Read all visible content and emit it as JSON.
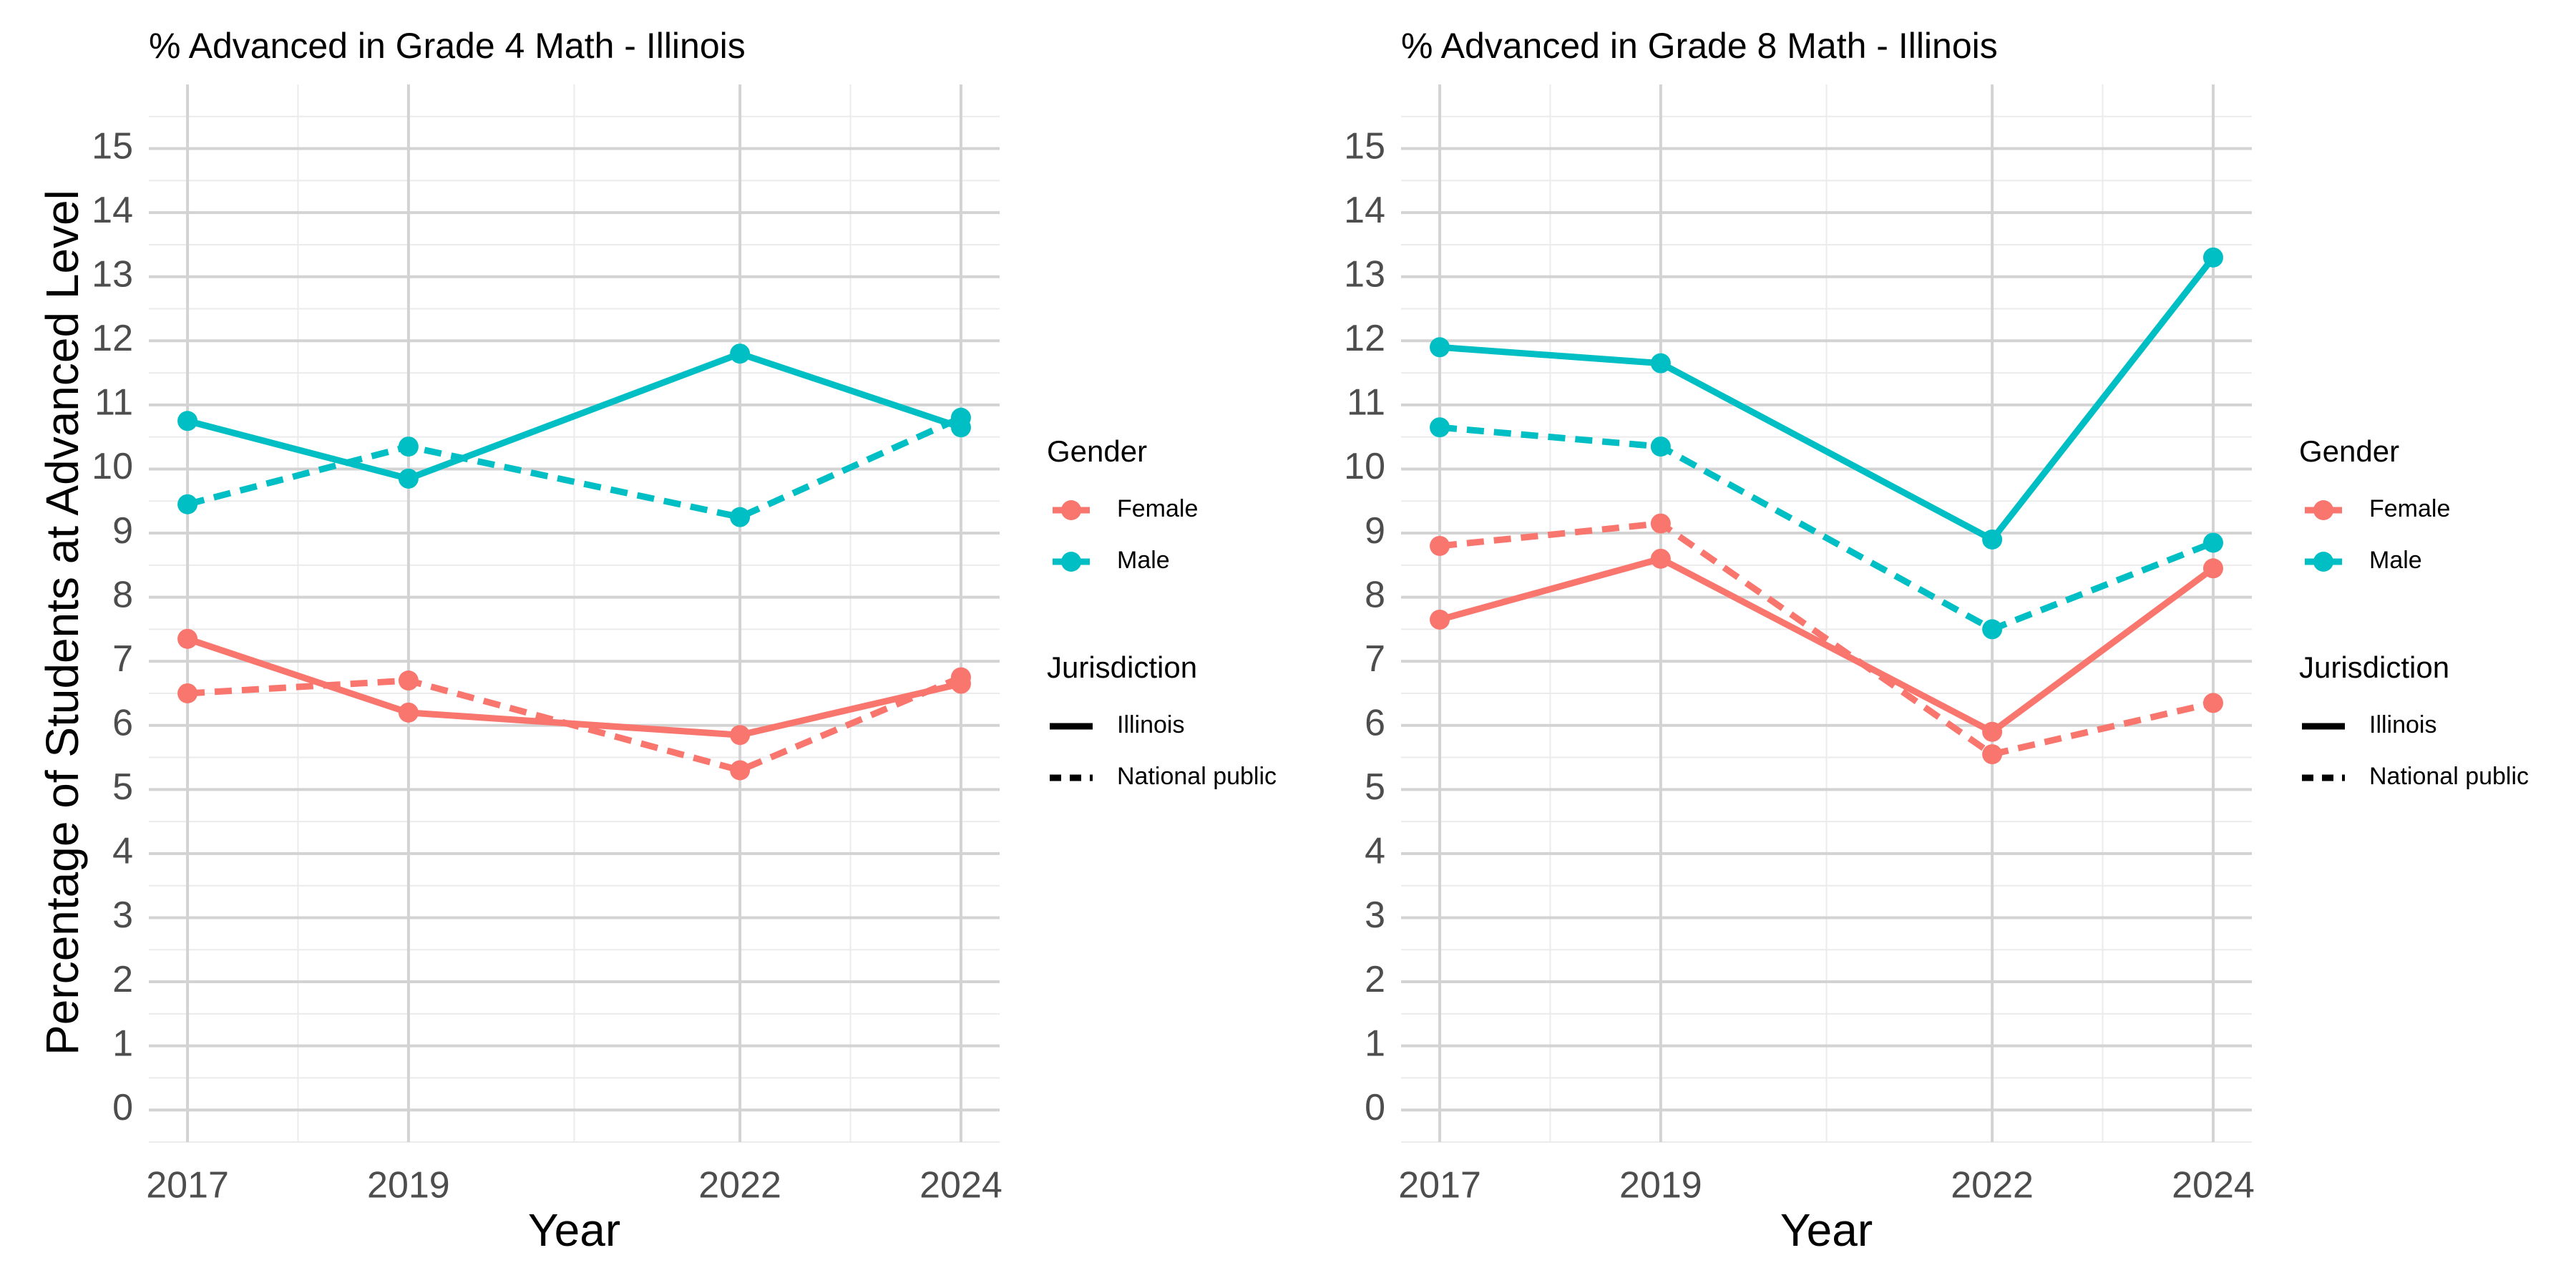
{
  "figure": {
    "ylabel": "Percentage of Students at Advanced Level"
  },
  "legend": {
    "gender_title": "Gender",
    "gender_items": [
      {
        "label": "Female",
        "color": "#F8766D"
      },
      {
        "label": "Male",
        "color": "#00BFC4"
      }
    ],
    "jurisdiction_title": "Jurisdiction",
    "jurisdiction_items": [
      {
        "label": "Illinois",
        "linetype": "solid"
      },
      {
        "label": "National public",
        "linetype": "dashed"
      }
    ]
  },
  "chart_data": [
    {
      "type": "line",
      "title": "% Advanced in Grade 4 Math - Illinois",
      "xlabel": "Year",
      "ylabel": "Percentage of Students at Advanced Level",
      "x": [
        2017,
        2019,
        2022,
        2024
      ],
      "x_ticks": [
        "2017",
        "2019",
        "2022",
        "2024"
      ],
      "y_ticks": [
        "0",
        "1",
        "2",
        "3",
        "4",
        "5",
        "6",
        "7",
        "8",
        "9",
        "10",
        "11",
        "12",
        "13",
        "14",
        "15"
      ],
      "xlim": [
        2016.65,
        2024.35
      ],
      "ylim": [
        -0.5,
        16.0
      ],
      "grid": true,
      "series": [
        {
          "gender": "Female",
          "jurisdiction": "Illinois",
          "color": "#F8766D",
          "linetype": "solid",
          "values": [
            7.35,
            6.2,
            5.85,
            6.65
          ]
        },
        {
          "gender": "Female",
          "jurisdiction": "National public",
          "color": "#F8766D",
          "linetype": "dashed",
          "values": [
            6.5,
            6.7,
            5.3,
            6.75
          ]
        },
        {
          "gender": "Male",
          "jurisdiction": "Illinois",
          "color": "#00BFC4",
          "linetype": "solid",
          "values": [
            10.75,
            9.85,
            11.8,
            10.65
          ]
        },
        {
          "gender": "Male",
          "jurisdiction": "National public",
          "color": "#00BFC4",
          "linetype": "dashed",
          "values": [
            9.45,
            10.35,
            9.25,
            10.8
          ]
        }
      ]
    },
    {
      "type": "line",
      "title": "% Advanced in Grade 8 Math - Illinois",
      "xlabel": "Year",
      "ylabel": "",
      "x": [
        2017,
        2019,
        2022,
        2024
      ],
      "x_ticks": [
        "2017",
        "2019",
        "2022",
        "2024"
      ],
      "y_ticks": [
        "0",
        "1",
        "2",
        "3",
        "4",
        "5",
        "6",
        "7",
        "8",
        "9",
        "10",
        "11",
        "12",
        "13",
        "14",
        "15"
      ],
      "xlim": [
        2016.65,
        2024.35
      ],
      "ylim": [
        -0.5,
        16.0
      ],
      "grid": true,
      "series": [
        {
          "gender": "Female",
          "jurisdiction": "Illinois",
          "color": "#F8766D",
          "linetype": "solid",
          "values": [
            7.65,
            8.6,
            5.9,
            8.45
          ]
        },
        {
          "gender": "Female",
          "jurisdiction": "National public",
          "color": "#F8766D",
          "linetype": "dashed",
          "values": [
            8.8,
            9.15,
            5.55,
            6.35
          ]
        },
        {
          "gender": "Male",
          "jurisdiction": "Illinois",
          "color": "#00BFC4",
          "linetype": "solid",
          "values": [
            11.9,
            11.65,
            8.9,
            13.3
          ]
        },
        {
          "gender": "Male",
          "jurisdiction": "National public",
          "color": "#00BFC4",
          "linetype": "dashed",
          "values": [
            10.65,
            10.35,
            7.5,
            8.85
          ]
        }
      ]
    }
  ]
}
